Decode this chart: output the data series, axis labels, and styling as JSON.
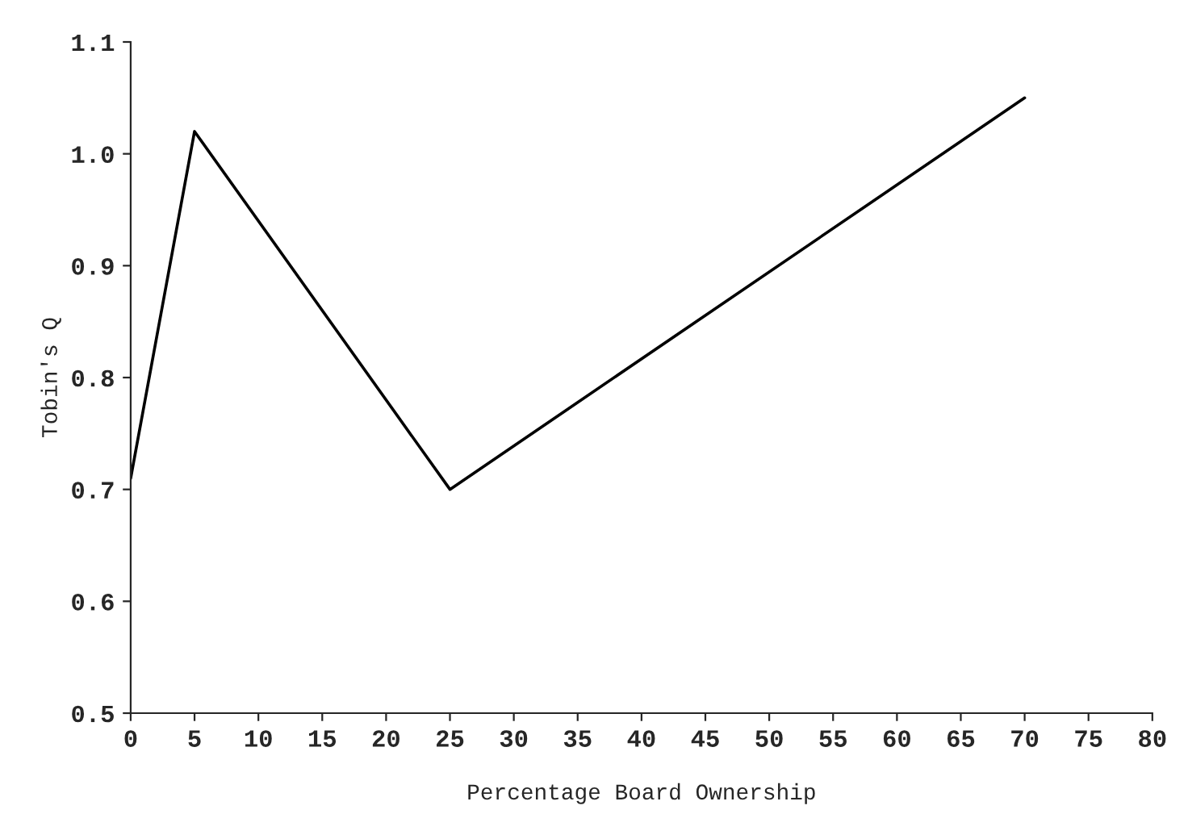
{
  "chart_data": {
    "type": "line",
    "xlabel": "Percentage Board Ownership",
    "ylabel": "Tobin's Q",
    "x": [
      0,
      5,
      25,
      70
    ],
    "series": [
      {
        "color": "#000000",
        "values": [
          0.71,
          1.02,
          0.7,
          1.05
        ]
      }
    ],
    "xlim": [
      0,
      80
    ],
    "xticks": [
      0,
      5,
      10,
      15,
      20,
      25,
      30,
      35,
      40,
      45,
      50,
      55,
      60,
      65,
      70,
      75,
      80
    ],
    "ylim": [
      0.5,
      1.1
    ],
    "yticks": [
      {
        "value": 0.5,
        "label": "0.5"
      },
      {
        "value": 0.6,
        "label": "0.6"
      },
      {
        "value": 0.7,
        "label": "0.7"
      },
      {
        "value": 0.8,
        "label": "0.8"
      },
      {
        "value": 0.9,
        "label": "0.9"
      },
      {
        "value": 1.0,
        "label": "1.0"
      },
      {
        "value": 1.1,
        "label": "1.1"
      }
    ],
    "grid": false,
    "legend": false,
    "marker": "none",
    "line_style": "solid"
  }
}
